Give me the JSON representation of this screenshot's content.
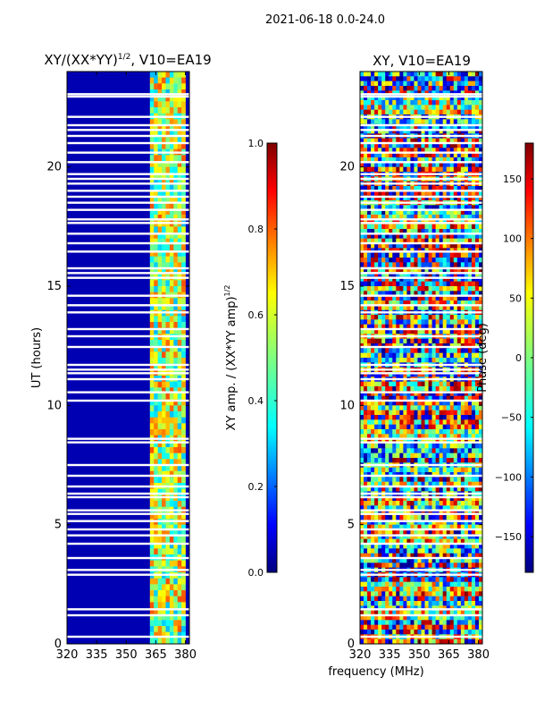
{
  "suptitle": "2021-06-18 0.0-24.0",
  "shared_xlabel": "frequency (MHz)",
  "chart_data": [
    {
      "type": "heatmap",
      "title": "XY/(XX*YY)^1/2, V10=EA19",
      "title_main": "XY/(XX*YY)",
      "title_sup": "1/2",
      "title_tail": ", V10=EA19",
      "ylabel": "UT (hours)",
      "xlim": [
        320,
        382
      ],
      "ylim": [
        0,
        24
      ],
      "xticks": [
        320,
        335,
        350,
        365,
        380
      ],
      "yticks": [
        0,
        5,
        10,
        15,
        20
      ],
      "colorbar": {
        "label": "XY amp. / (XX*YY amp)^1/2",
        "label_main": "XY amp. / (XX*YY amp)",
        "label_sup": "1/2",
        "range": [
          0.0,
          1.0
        ],
        "ticks": [
          "0.0",
          "0.2",
          "0.4",
          "0.6",
          "0.8",
          "1.0"
        ],
        "colormap": "jet"
      },
      "description_values": {
        "background_level": 0.05,
        "band_start_mhz": 362,
        "band_end_mhz": 380,
        "band_typical_range": [
          0.3,
          0.8
        ]
      }
    },
    {
      "type": "heatmap",
      "title": "XY, V10=EA19",
      "xlim": [
        320,
        382
      ],
      "ylim": [
        0,
        24
      ],
      "xticks": [
        320,
        335,
        350,
        365,
        380
      ],
      "yticks": [
        0,
        5,
        10,
        15,
        20
      ],
      "colorbar": {
        "label": "Phase (deg)",
        "range": [
          -180,
          180
        ],
        "ticks": [
          "150",
          "100",
          "50",
          "0",
          "−50",
          "−100",
          "−150"
        ],
        "colormap": "jet"
      }
    }
  ],
  "gap_rows_hours": [
    0.3,
    1.2,
    1.45,
    2.9,
    3.1,
    3.6,
    4.2,
    4.55,
    4.8,
    5.15,
    5.45,
    5.6,
    6.15,
    6.3,
    6.6,
    7.05,
    7.5,
    8.45,
    8.6,
    10.2,
    10.55,
    11.1,
    11.35,
    11.5,
    11.7,
    12.45,
    12.9,
    13.2,
    13.9,
    14.2,
    14.6,
    15.35,
    15.55,
    15.75,
    16.45,
    16.8,
    17.2,
    17.65,
    17.8,
    18.2,
    18.5,
    18.75,
    19.0,
    19.3,
    19.5,
    19.7,
    20.2,
    20.6,
    21.0,
    21.3,
    21.55,
    21.75,
    22.1,
    22.95,
    23.05
  ]
}
